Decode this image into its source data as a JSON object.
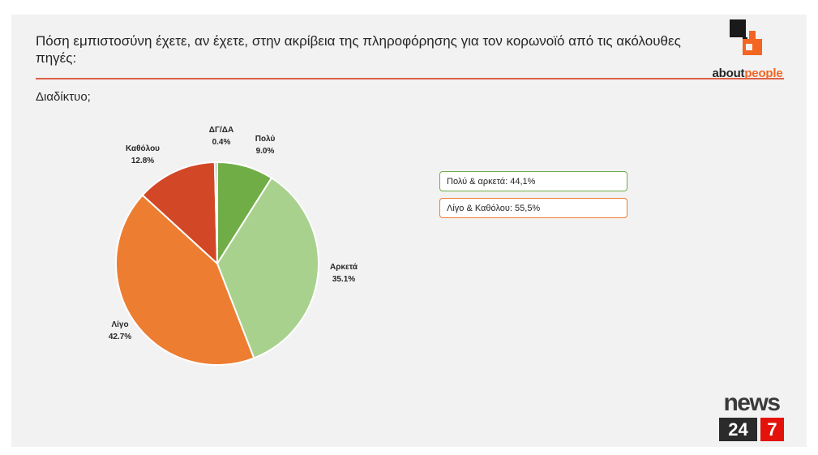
{
  "header": {
    "title": "Πόση εμπιστοσύνη έχετε, αν έχετε, στην ακρίβεια της πληροφόρησης για τον κορωνοϊό από τις ακόλουθες πηγές:",
    "subtitle": "Διαδίκτυο;"
  },
  "brand": {
    "aboutpeople_word1": "about",
    "aboutpeople_word2": "people",
    "news_word": "news",
    "news_num1": "24",
    "news_num2": "7",
    "accent_color": "#f26522",
    "news_red": "#e3130b"
  },
  "summary_boxes": [
    {
      "text": "Πολύ & αρκετά: 44,1%",
      "color": "#70ad47"
    },
    {
      "text": "Λίγο & Καθόλου: 55,5%",
      "color": "#ed7d31"
    }
  ],
  "chart_data": {
    "type": "pie",
    "title": "",
    "slices": [
      {
        "label": "Πολύ",
        "value": 9.0,
        "value_label": "9.0%",
        "color": "#70ad47"
      },
      {
        "label": "Αρκετά",
        "value": 35.1,
        "value_label": "35.1%",
        "color": "#a9d18e"
      },
      {
        "label": "Λίγο",
        "value": 42.7,
        "value_label": "42.7%",
        "color": "#ed7d31"
      },
      {
        "label": "Καθόλου",
        "value": 12.8,
        "value_label": "12.8%",
        "color": "#d24726"
      },
      {
        "label": "ΔΓ/ΔΑ",
        "value": 0.4,
        "value_label": "0.4%",
        "color": "#a5a5a5"
      }
    ],
    "start": "12 o'clock, clockwise",
    "legend": "none"
  }
}
